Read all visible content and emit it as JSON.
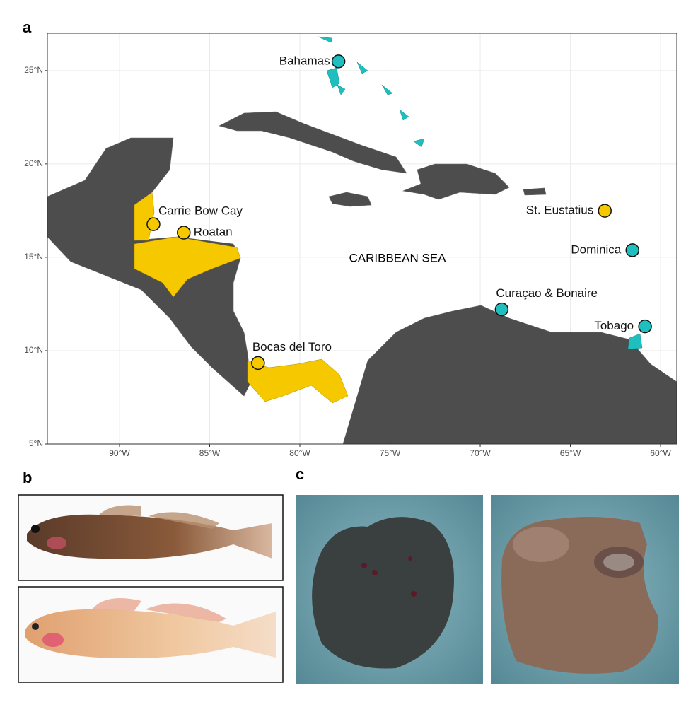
{
  "panel_labels": [
    "a",
    "b",
    "c"
  ],
  "map": {
    "xlim": [
      -94,
      -59.1
    ],
    "ylim": [
      5,
      27
    ],
    "xticks": [
      {
        "value": -90,
        "label": "90°W"
      },
      {
        "value": -85,
        "label": "85°W"
      },
      {
        "value": -80,
        "label": "80°W"
      },
      {
        "value": -75,
        "label": "75°W"
      },
      {
        "value": -70,
        "label": "70°W"
      },
      {
        "value": -65,
        "label": "65°W"
      },
      {
        "value": -60,
        "label": "60°W"
      }
    ],
    "yticks": [
      {
        "value": 5,
        "label": "5°N"
      },
      {
        "value": 10,
        "label": "10°N"
      },
      {
        "value": 15,
        "label": "15°N"
      },
      {
        "value": 20,
        "label": "20°N"
      },
      {
        "value": 25,
        "label": "25°N"
      }
    ],
    "sea_label": "CARIBBEAN SEA",
    "sites": [
      {
        "name": "Bahamas",
        "lon": -77.86,
        "lat": 25.49,
        "color": "#1fbfbf"
      },
      {
        "name": "Carrie Bow Cay",
        "lon": -88.12,
        "lat": 16.77,
        "color": "#f5c800"
      },
      {
        "name": "Roatan",
        "lon": -86.44,
        "lat": 16.32,
        "color": "#f5c800"
      },
      {
        "name": "St. Eustatius",
        "lon": -63.09,
        "lat": 17.49,
        "color": "#f5c800"
      },
      {
        "name": "Dominica",
        "lon": -61.56,
        "lat": 15.38,
        "color": "#1fbfbf"
      },
      {
        "name": "Curaçao & Bonaire",
        "lon": -68.81,
        "lat": 12.21,
        "color": "#1fbfbf"
      },
      {
        "name": "Tobago",
        "lon": -60.86,
        "lat": 11.3,
        "color": "#1fbfbf"
      },
      {
        "name": "Bocas del Toro",
        "lon": -82.32,
        "lat": 9.34,
        "color": "#f5c800"
      }
    ]
  }
}
